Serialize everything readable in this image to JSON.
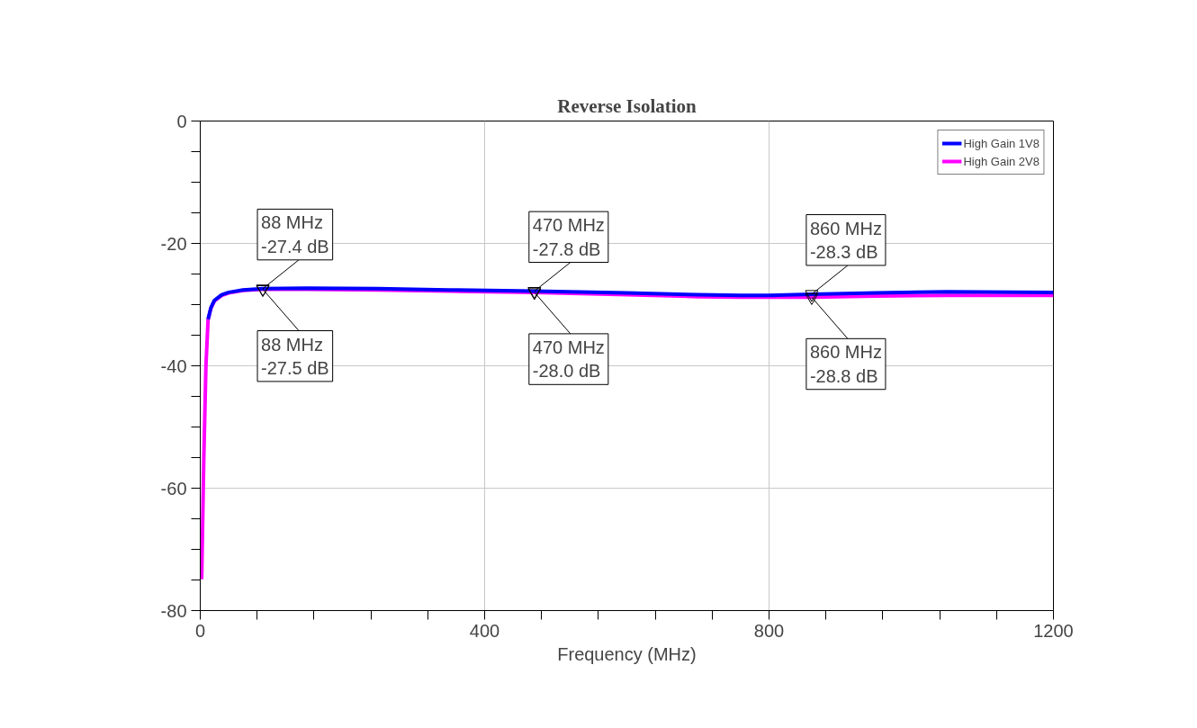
{
  "chart_data": {
    "type": "line",
    "title": "Reverse Isolation",
    "xlabel": "Frequency (MHz)",
    "xlim": [
      0,
      1200
    ],
    "ylim": [
      -80,
      0
    ],
    "xticks": [
      0,
      {
        "value": 80,
        "label": null
      },
      {
        "value": 160,
        "label": null
      },
      {
        "value": 240,
        "label": null
      },
      {
        "value": 320,
        "label": null
      },
      400,
      {
        "value": 480,
        "label": null
      },
      {
        "value": 560,
        "label": null
      },
      {
        "value": 640,
        "label": null
      },
      {
        "value": 720,
        "label": null
      },
      800,
      {
        "value": 880,
        "label": null
      },
      {
        "value": 960,
        "label": null
      },
      {
        "value": 1040,
        "label": null
      },
      {
        "value": 1120,
        "label": null
      },
      1200
    ],
    "yticks": [
      -80,
      {
        "value": -75,
        "label": null
      },
      {
        "value": -70,
        "label": null
      },
      {
        "value": -65,
        "label": null
      },
      -60,
      {
        "value": -55,
        "label": null
      },
      {
        "value": -50,
        "label": null
      },
      {
        "value": -45,
        "label": null
      },
      -40,
      {
        "value": -35,
        "label": null
      },
      {
        "value": -30,
        "label": null
      },
      {
        "value": -25,
        "label": null
      },
      -20,
      {
        "value": -15,
        "label": null
      },
      {
        "value": -10,
        "label": null
      },
      {
        "value": -5,
        "label": null
      },
      0
    ],
    "grid": true,
    "legend": "top right",
    "marker": "none",
    "line_style": "solid",
    "series": [
      {
        "name": "High Gain 1V8",
        "color": "#0000ff",
        "x": [
          11,
          15,
          20,
          30,
          40,
          60,
          88,
          150,
          250,
          350,
          470,
          600,
          700,
          760,
          800,
          860,
          950,
          1050,
          1200
        ],
        "values": [
          -32.4,
          -30.5,
          -29.3,
          -28.4,
          -28.0,
          -27.6,
          -27.4,
          -27.3,
          -27.4,
          -27.6,
          -27.8,
          -28.1,
          -28.4,
          -28.5,
          -28.5,
          -28.3,
          -28.1,
          -27.9,
          -28.0
        ]
      },
      {
        "name": "High Gain 2V8",
        "color": "#ff00ff",
        "x": [
          2,
          5,
          8,
          11,
          15,
          20,
          30,
          40,
          60,
          88,
          150,
          250,
          350,
          470,
          600,
          700,
          760,
          800,
          860,
          950,
          1050,
          1200
        ],
        "values": [
          -74.9,
          -55,
          -40,
          -32.5,
          -30.6,
          -29.4,
          -28.5,
          -28.1,
          -27.7,
          -27.5,
          -27.5,
          -27.6,
          -27.8,
          -28.0,
          -28.4,
          -28.7,
          -28.8,
          -28.8,
          -28.8,
          -28.6,
          -28.5,
          -28.5
        ]
      }
    ],
    "annotations": [
      {
        "text": "88 MHz\n-27.4 dB",
        "x": 88,
        "y": -27.4
      },
      {
        "text": "88 MHz\n-27.5 dB",
        "x": 88,
        "y": -27.5
      },
      {
        "text": "470 MHz\n-27.8 dB",
        "x": 470,
        "y": -27.8
      },
      {
        "text": "470 MHz\n-28.0 dB",
        "x": 470,
        "y": -28.0
      },
      {
        "text": "860 MHz\n-28.3 dB",
        "x": 860,
        "y": -28.3
      },
      {
        "text": "860 MHz\n-28.8 dB",
        "x": 860,
        "y": -28.8
      }
    ]
  }
}
